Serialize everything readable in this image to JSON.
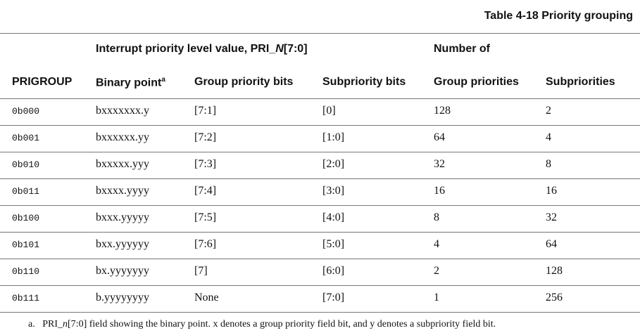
{
  "header": {
    "title": "Table 4-18 Priority grouping"
  },
  "table": {
    "group_headers": [
      {
        "prefix": "Interrupt priority level value, PRI_",
        "italic": "N",
        "suffix": "[7:0]"
      },
      "Number of"
    ],
    "columns": [
      "PRIGROUP",
      {
        "text": "Binary point",
        "note": "a"
      },
      "Group priority bits",
      "Subpriority bits",
      "Group priorities",
      "Subpriorities"
    ],
    "rows": [
      [
        "0b000",
        "bxxxxxxx.y",
        "[7:1]",
        "[0]",
        "128",
        "2"
      ],
      [
        "0b001",
        "bxxxxxx.yy",
        "[7:2]",
        "[1:0]",
        "64",
        "4"
      ],
      [
        "0b010",
        "bxxxxx.yyy",
        "[7:3]",
        "[2:0]",
        "32",
        "8"
      ],
      [
        "0b011",
        "bxxxx.yyyy",
        "[7:4]",
        "[3:0]",
        "16",
        "16"
      ],
      [
        "0b100",
        "bxxx.yyyyy",
        "[7:5]",
        "[4:0]",
        "8",
        "32"
      ],
      [
        "0b101",
        "bxx.yyyyyy",
        "[7:6]",
        "[5:0]",
        "4",
        "64"
      ],
      [
        "0b110",
        "bx.yyyyyyy",
        "[7]",
        "[6:0]",
        "2",
        "128"
      ],
      [
        "0b111",
        "b.yyyyyyyy",
        "None",
        "[7:0]",
        "1",
        "256"
      ]
    ]
  },
  "footnote": {
    "mark": "a.",
    "prefix": "PRI_",
    "italic": "n",
    "suffix": "[7:0] field showing the binary point. x denotes a group priority field bit, and y denotes a subpriority field bit."
  }
}
